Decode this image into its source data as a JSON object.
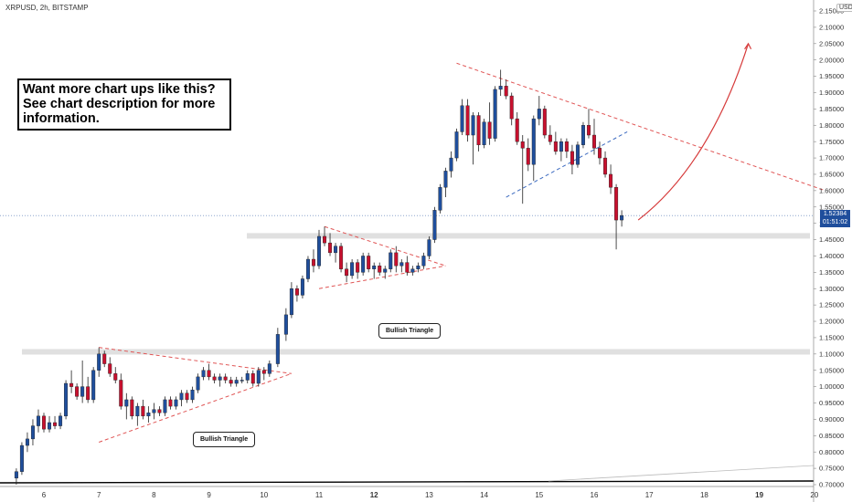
{
  "header": {
    "symbol": "XRPUSD, 2h, BITSTAMP",
    "currency": "USD"
  },
  "callout": {
    "text": "Want more chart ups like this? See chart description for more information."
  },
  "annotations": [
    {
      "label": "Bullish Triangle"
    },
    {
      "label": "Bullish Triangle"
    }
  ],
  "last_price": {
    "value": "1.52384",
    "countdown": "01:51:02"
  },
  "colors": {
    "up": "#1f4e9c",
    "down": "#c8102e",
    "trendline": "#e05555",
    "support_line": "#3c6ac0",
    "zone": "#e0e0e0"
  },
  "chart_data": {
    "type": "candlestick",
    "title": "XRPUSD, 2h, BITSTAMP",
    "ylim": [
      0.7,
      2.15
    ],
    "y_ticks": [
      "2.15000",
      "2.10000",
      "2.05000",
      "2.00000",
      "1.95000",
      "1.90000",
      "1.85000",
      "1.80000",
      "1.75000",
      "1.70000",
      "1.65000",
      "1.60000",
      "1.55000",
      "1.50000",
      "1.45000",
      "1.40000",
      "1.35000",
      "1.30000",
      "1.25000",
      "1.20000",
      "1.15000",
      "1.10000",
      "1.05000",
      "1.00000",
      "0.95000",
      "0.90000",
      "0.85000",
      "0.80000",
      "0.75000",
      "0.70000"
    ],
    "x_ticks": [
      "6",
      "7",
      "8",
      "9",
      "10",
      "11",
      "12",
      "13",
      "14",
      "15",
      "16",
      "17",
      "18",
      "19",
      "20"
    ],
    "x_ticks_bold": [
      "12",
      "19"
    ],
    "support_zones": [
      {
        "from": 1.1,
        "to": 1.115
      },
      {
        "from": 1.455,
        "to": 1.47
      }
    ],
    "candles": [
      {
        "x": 5.5,
        "o": 0.72,
        "h": 0.75,
        "l": 0.7,
        "c": 0.74
      },
      {
        "x": 5.6,
        "o": 0.74,
        "h": 0.83,
        "l": 0.73,
        "c": 0.82
      },
      {
        "x": 5.7,
        "o": 0.82,
        "h": 0.86,
        "l": 0.8,
        "c": 0.84
      },
      {
        "x": 5.8,
        "o": 0.84,
        "h": 0.9,
        "l": 0.82,
        "c": 0.88
      },
      {
        "x": 5.9,
        "o": 0.88,
        "h": 0.93,
        "l": 0.86,
        "c": 0.91
      },
      {
        "x": 6.0,
        "o": 0.91,
        "h": 0.92,
        "l": 0.86,
        "c": 0.87
      },
      {
        "x": 6.1,
        "o": 0.87,
        "h": 0.91,
        "l": 0.86,
        "c": 0.89
      },
      {
        "x": 6.2,
        "o": 0.89,
        "h": 0.91,
        "l": 0.87,
        "c": 0.88
      },
      {
        "x": 6.3,
        "o": 0.88,
        "h": 0.92,
        "l": 0.87,
        "c": 0.91
      },
      {
        "x": 6.4,
        "o": 0.91,
        "h": 1.02,
        "l": 0.9,
        "c": 1.01
      },
      {
        "x": 6.5,
        "o": 1.01,
        "h": 1.05,
        "l": 0.98,
        "c": 1.0
      },
      {
        "x": 6.6,
        "o": 1.0,
        "h": 1.01,
        "l": 0.96,
        "c": 0.97
      },
      {
        "x": 6.7,
        "o": 0.97,
        "h": 1.08,
        "l": 0.95,
        "c": 1.0
      },
      {
        "x": 6.8,
        "o": 1.0,
        "h": 1.03,
        "l": 0.95,
        "c": 0.96
      },
      {
        "x": 6.9,
        "o": 0.96,
        "h": 1.06,
        "l": 0.95,
        "c": 1.05
      },
      {
        "x": 7.0,
        "o": 1.05,
        "h": 1.12,
        "l": 1.03,
        "c": 1.1
      },
      {
        "x": 7.1,
        "o": 1.1,
        "h": 1.11,
        "l": 1.06,
        "c": 1.07
      },
      {
        "x": 7.2,
        "o": 1.07,
        "h": 1.09,
        "l": 1.03,
        "c": 1.04
      },
      {
        "x": 7.3,
        "o": 1.04,
        "h": 1.06,
        "l": 1.01,
        "c": 1.02
      },
      {
        "x": 7.4,
        "o": 1.02,
        "h": 1.04,
        "l": 0.93,
        "c": 0.94
      },
      {
        "x": 7.5,
        "o": 0.94,
        "h": 0.98,
        "l": 0.9,
        "c": 0.96
      },
      {
        "x": 7.6,
        "o": 0.96,
        "h": 0.97,
        "l": 0.9,
        "c": 0.91
      },
      {
        "x": 7.7,
        "o": 0.91,
        "h": 0.95,
        "l": 0.88,
        "c": 0.94
      },
      {
        "x": 7.8,
        "o": 0.94,
        "h": 0.96,
        "l": 0.9,
        "c": 0.91
      },
      {
        "x": 7.9,
        "o": 0.91,
        "h": 0.94,
        "l": 0.89,
        "c": 0.92
      },
      {
        "x": 8.0,
        "o": 0.92,
        "h": 0.95,
        "l": 0.9,
        "c": 0.93
      },
      {
        "x": 8.1,
        "o": 0.93,
        "h": 0.94,
        "l": 0.91,
        "c": 0.92
      },
      {
        "x": 8.2,
        "o": 0.92,
        "h": 0.97,
        "l": 0.91,
        "c": 0.96
      },
      {
        "x": 8.3,
        "o": 0.96,
        "h": 0.97,
        "l": 0.93,
        "c": 0.94
      },
      {
        "x": 8.4,
        "o": 0.94,
        "h": 0.97,
        "l": 0.93,
        "c": 0.96
      },
      {
        "x": 8.5,
        "o": 0.96,
        "h": 0.99,
        "l": 0.94,
        "c": 0.98
      },
      {
        "x": 8.6,
        "o": 0.98,
        "h": 0.99,
        "l": 0.95,
        "c": 0.96
      },
      {
        "x": 8.7,
        "o": 0.96,
        "h": 1.0,
        "l": 0.95,
        "c": 0.99
      },
      {
        "x": 8.8,
        "o": 0.99,
        "h": 1.04,
        "l": 0.98,
        "c": 1.03
      },
      {
        "x": 8.9,
        "o": 1.03,
        "h": 1.06,
        "l": 1.02,
        "c": 1.05
      },
      {
        "x": 9.0,
        "o": 1.05,
        "h": 1.07,
        "l": 1.02,
        "c": 1.03
      },
      {
        "x": 9.1,
        "o": 1.03,
        "h": 1.04,
        "l": 1.01,
        "c": 1.02
      },
      {
        "x": 9.2,
        "o": 1.02,
        "h": 1.04,
        "l": 1.0,
        "c": 1.03
      },
      {
        "x": 9.3,
        "o": 1.03,
        "h": 1.04,
        "l": 1.01,
        "c": 1.02
      },
      {
        "x": 9.4,
        "o": 1.02,
        "h": 1.03,
        "l": 1.0,
        "c": 1.01
      },
      {
        "x": 9.5,
        "o": 1.01,
        "h": 1.03,
        "l": 1.0,
        "c": 1.02
      },
      {
        "x": 9.6,
        "o": 1.02,
        "h": 1.03,
        "l": 1.01,
        "c": 1.02
      },
      {
        "x": 9.7,
        "o": 1.02,
        "h": 1.05,
        "l": 1.01,
        "c": 1.04
      },
      {
        "x": 9.8,
        "o": 1.04,
        "h": 1.05,
        "l": 1.0,
        "c": 1.01
      },
      {
        "x": 9.9,
        "o": 1.01,
        "h": 1.06,
        "l": 1.0,
        "c": 1.05
      },
      {
        "x": 10.0,
        "o": 1.05,
        "h": 1.06,
        "l": 1.02,
        "c": 1.04
      },
      {
        "x": 10.1,
        "o": 1.04,
        "h": 1.08,
        "l": 1.03,
        "c": 1.07
      },
      {
        "x": 10.25,
        "o": 1.07,
        "h": 1.18,
        "l": 1.06,
        "c": 1.16
      },
      {
        "x": 10.4,
        "o": 1.16,
        "h": 1.24,
        "l": 1.14,
        "c": 1.22
      },
      {
        "x": 10.5,
        "o": 1.22,
        "h": 1.32,
        "l": 1.21,
        "c": 1.3
      },
      {
        "x": 10.6,
        "o": 1.3,
        "h": 1.31,
        "l": 1.26,
        "c": 1.28
      },
      {
        "x": 10.7,
        "o": 1.28,
        "h": 1.34,
        "l": 1.27,
        "c": 1.33
      },
      {
        "x": 10.8,
        "o": 1.33,
        "h": 1.4,
        "l": 1.32,
        "c": 1.39
      },
      {
        "x": 10.9,
        "o": 1.39,
        "h": 1.42,
        "l": 1.35,
        "c": 1.37
      },
      {
        "x": 11.0,
        "o": 1.37,
        "h": 1.48,
        "l": 1.36,
        "c": 1.46
      },
      {
        "x": 11.1,
        "o": 1.46,
        "h": 1.49,
        "l": 1.43,
        "c": 1.44
      },
      {
        "x": 11.2,
        "o": 1.44,
        "h": 1.47,
        "l": 1.4,
        "c": 1.41
      },
      {
        "x": 11.3,
        "o": 1.41,
        "h": 1.44,
        "l": 1.38,
        "c": 1.43
      },
      {
        "x": 11.4,
        "o": 1.43,
        "h": 1.44,
        "l": 1.35,
        "c": 1.36
      },
      {
        "x": 11.5,
        "o": 1.36,
        "h": 1.38,
        "l": 1.32,
        "c": 1.34
      },
      {
        "x": 11.6,
        "o": 1.34,
        "h": 1.39,
        "l": 1.33,
        "c": 1.38
      },
      {
        "x": 11.7,
        "o": 1.38,
        "h": 1.39,
        "l": 1.33,
        "c": 1.35
      },
      {
        "x": 11.8,
        "o": 1.35,
        "h": 1.41,
        "l": 1.34,
        "c": 1.4
      },
      {
        "x": 11.9,
        "o": 1.4,
        "h": 1.41,
        "l": 1.35,
        "c": 1.36
      },
      {
        "x": 12.0,
        "o": 1.36,
        "h": 1.38,
        "l": 1.33,
        "c": 1.37
      },
      {
        "x": 12.1,
        "o": 1.37,
        "h": 1.38,
        "l": 1.34,
        "c": 1.35
      },
      {
        "x": 12.2,
        "o": 1.35,
        "h": 1.37,
        "l": 1.33,
        "c": 1.36
      },
      {
        "x": 12.3,
        "o": 1.36,
        "h": 1.42,
        "l": 1.35,
        "c": 1.41
      },
      {
        "x": 12.4,
        "o": 1.41,
        "h": 1.43,
        "l": 1.35,
        "c": 1.37
      },
      {
        "x": 12.5,
        "o": 1.37,
        "h": 1.39,
        "l": 1.35,
        "c": 1.38
      },
      {
        "x": 12.6,
        "o": 1.38,
        "h": 1.4,
        "l": 1.34,
        "c": 1.35
      },
      {
        "x": 12.7,
        "o": 1.35,
        "h": 1.37,
        "l": 1.34,
        "c": 1.36
      },
      {
        "x": 12.8,
        "o": 1.36,
        "h": 1.38,
        "l": 1.35,
        "c": 1.37
      },
      {
        "x": 12.9,
        "o": 1.37,
        "h": 1.41,
        "l": 1.36,
        "c": 1.4
      },
      {
        "x": 13.0,
        "o": 1.4,
        "h": 1.46,
        "l": 1.39,
        "c": 1.45
      },
      {
        "x": 13.1,
        "o": 1.45,
        "h": 1.55,
        "l": 1.44,
        "c": 1.54
      },
      {
        "x": 13.2,
        "o": 1.54,
        "h": 1.62,
        "l": 1.53,
        "c": 1.61
      },
      {
        "x": 13.3,
        "o": 1.61,
        "h": 1.67,
        "l": 1.58,
        "c": 1.66
      },
      {
        "x": 13.4,
        "o": 1.66,
        "h": 1.72,
        "l": 1.64,
        "c": 1.7
      },
      {
        "x": 13.5,
        "o": 1.7,
        "h": 1.79,
        "l": 1.69,
        "c": 1.78
      },
      {
        "x": 13.6,
        "o": 1.78,
        "h": 1.88,
        "l": 1.77,
        "c": 1.86
      },
      {
        "x": 13.7,
        "o": 1.86,
        "h": 1.88,
        "l": 1.75,
        "c": 1.77
      },
      {
        "x": 13.8,
        "o": 1.77,
        "h": 1.84,
        "l": 1.68,
        "c": 1.83
      },
      {
        "x": 13.9,
        "o": 1.83,
        "h": 1.84,
        "l": 1.72,
        "c": 1.74
      },
      {
        "x": 14.0,
        "o": 1.74,
        "h": 1.82,
        "l": 1.73,
        "c": 1.81
      },
      {
        "x": 14.1,
        "o": 1.81,
        "h": 1.87,
        "l": 1.74,
        "c": 1.76
      },
      {
        "x": 14.2,
        "o": 1.76,
        "h": 1.92,
        "l": 1.75,
        "c": 1.91
      },
      {
        "x": 14.3,
        "o": 1.91,
        "h": 1.97,
        "l": 1.89,
        "c": 1.92
      },
      {
        "x": 14.4,
        "o": 1.92,
        "h": 1.94,
        "l": 1.88,
        "c": 1.89
      },
      {
        "x": 14.5,
        "o": 1.89,
        "h": 1.9,
        "l": 1.8,
        "c": 1.82
      },
      {
        "x": 14.6,
        "o": 1.82,
        "h": 1.84,
        "l": 1.74,
        "c": 1.75
      },
      {
        "x": 14.7,
        "o": 1.75,
        "h": 1.77,
        "l": 1.56,
        "c": 1.73
      },
      {
        "x": 14.8,
        "o": 1.73,
        "h": 1.76,
        "l": 1.66,
        "c": 1.68
      },
      {
        "x": 14.9,
        "o": 1.68,
        "h": 1.83,
        "l": 1.63,
        "c": 1.82
      },
      {
        "x": 15.0,
        "o": 1.82,
        "h": 1.89,
        "l": 1.8,
        "c": 1.85
      },
      {
        "x": 15.1,
        "o": 1.85,
        "h": 1.86,
        "l": 1.76,
        "c": 1.77
      },
      {
        "x": 15.2,
        "o": 1.77,
        "h": 1.8,
        "l": 1.74,
        "c": 1.75
      },
      {
        "x": 15.3,
        "o": 1.75,
        "h": 1.78,
        "l": 1.71,
        "c": 1.72
      },
      {
        "x": 15.4,
        "o": 1.72,
        "h": 1.76,
        "l": 1.69,
        "c": 1.75
      },
      {
        "x": 15.5,
        "o": 1.75,
        "h": 1.76,
        "l": 1.7,
        "c": 1.72
      },
      {
        "x": 15.6,
        "o": 1.72,
        "h": 1.74,
        "l": 1.65,
        "c": 1.68
      },
      {
        "x": 15.7,
        "o": 1.68,
        "h": 1.75,
        "l": 1.67,
        "c": 1.74
      },
      {
        "x": 15.8,
        "o": 1.74,
        "h": 1.81,
        "l": 1.73,
        "c": 1.8
      },
      {
        "x": 15.9,
        "o": 1.8,
        "h": 1.85,
        "l": 1.76,
        "c": 1.77
      },
      {
        "x": 16.0,
        "o": 1.77,
        "h": 1.82,
        "l": 1.71,
        "c": 1.73
      },
      {
        "x": 16.1,
        "o": 1.73,
        "h": 1.75,
        "l": 1.68,
        "c": 1.7
      },
      {
        "x": 16.2,
        "o": 1.7,
        "h": 1.72,
        "l": 1.64,
        "c": 1.65
      },
      {
        "x": 16.3,
        "o": 1.65,
        "h": 1.68,
        "l": 1.59,
        "c": 1.61
      },
      {
        "x": 16.4,
        "o": 1.61,
        "h": 1.62,
        "l": 1.42,
        "c": 1.51
      },
      {
        "x": 16.5,
        "o": 1.51,
        "h": 1.54,
        "l": 1.49,
        "c": 1.52384
      }
    ],
    "trendlines": [
      {
        "style": "dashed-red",
        "points": [
          [
            7.0,
            1.12
          ],
          [
            10.5,
            1.04
          ]
        ]
      },
      {
        "style": "dashed-red",
        "points": [
          [
            7.0,
            0.83
          ],
          [
            10.5,
            1.04
          ]
        ]
      },
      {
        "style": "dashed-red",
        "points": [
          [
            11.1,
            1.49
          ],
          [
            13.3,
            1.37
          ]
        ]
      },
      {
        "style": "dashed-red",
        "points": [
          [
            11.0,
            1.3
          ],
          [
            13.3,
            1.37
          ]
        ]
      },
      {
        "style": "dashed-red",
        "points": [
          [
            13.5,
            1.99
          ],
          [
            20.2,
            1.6
          ]
        ]
      },
      {
        "style": "dashed-blue",
        "points": [
          [
            14.4,
            1.58
          ],
          [
            16.6,
            1.78
          ]
        ]
      }
    ],
    "projection": {
      "style": "solid-red-arrow",
      "points": [
        [
          16.8,
          1.51
        ],
        [
          18.1,
          1.68
        ],
        [
          18.8,
          2.05
        ]
      ]
    }
  }
}
